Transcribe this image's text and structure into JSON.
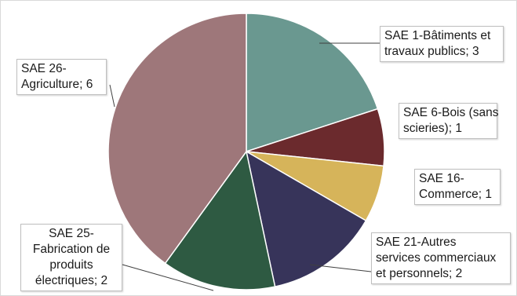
{
  "chart_data": {
    "type": "pie",
    "categories": [
      "SAE 1-Bâtiments et travaux publics",
      "SAE 6-Bois (sans scieries)",
      "SAE 16-Commerce",
      "SAE 21-Autres services commerciaux et personnels",
      "SAE 25-Fabrication de produits électriques",
      "SAE 26-Agriculture"
    ],
    "values": [
      3,
      1,
      1,
      2,
      2,
      6
    ],
    "colors": [
      "#6a9890",
      "#6b2a2d",
      "#d6b45a",
      "#37345a",
      "#2e5a42",
      "#9e777a"
    ],
    "start_angle_deg": 0,
    "direction": "clockwise",
    "legend": "none",
    "labels": [
      {
        "lines": [
          "SAE 1-Bâtiments et",
          "travaux publics; 3"
        ]
      },
      {
        "lines": [
          "SAE 6-Bois (sans",
          "scieries); 1"
        ]
      },
      {
        "lines": [
          "SAE 16-",
          "Commerce; 1"
        ]
      },
      {
        "lines": [
          "SAE 21-Autres",
          "services commerciaux",
          "et personnels; 2"
        ]
      },
      {
        "lines": [
          "SAE 25-",
          "Fabrication de",
          "produits",
          "électriques; 2"
        ]
      },
      {
        "lines": [
          "SAE 26-",
          "Agriculture; 6"
        ]
      }
    ]
  }
}
